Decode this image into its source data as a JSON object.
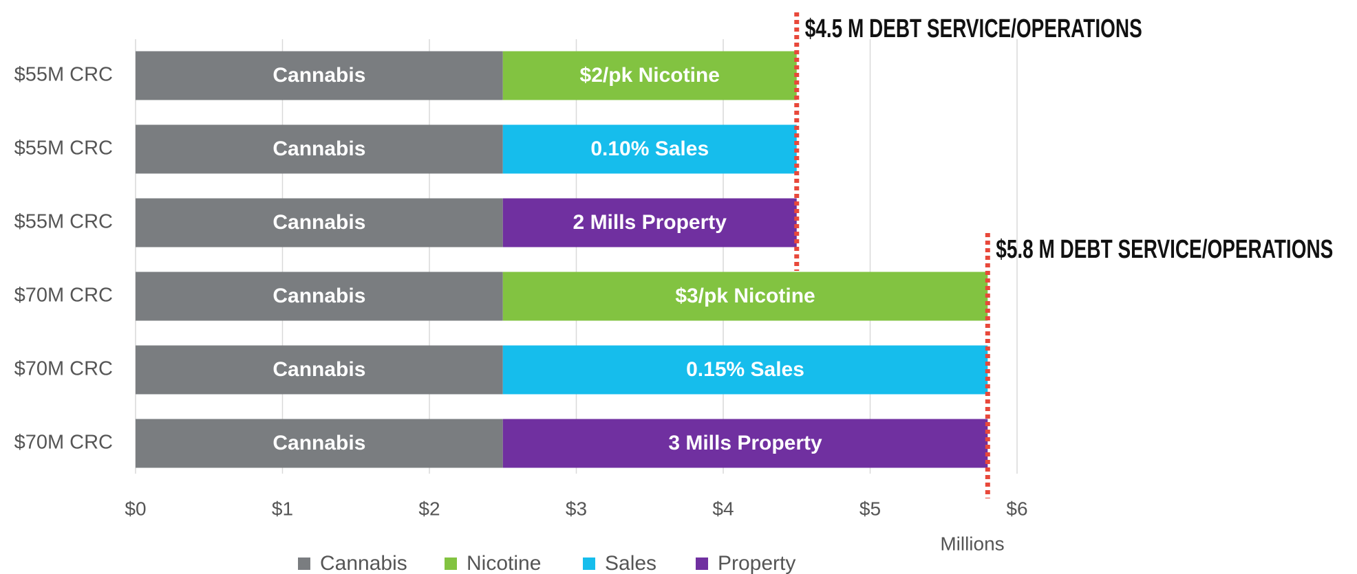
{
  "chart_data": {
    "type": "stacked-bar-horizontal",
    "categories": [
      "$55M CRC",
      "$55M CRC",
      "$55M CRC",
      "$70M CRC",
      "$70M CRC",
      "$70M CRC"
    ],
    "series": [
      {
        "name": "Cannabis",
        "color": "#7a7d80",
        "values": [
          2.5,
          2.5,
          2.5,
          2.5,
          2.5,
          2.5
        ],
        "labels": [
          "Cannabis",
          "Cannabis",
          "Cannabis",
          "Cannabis",
          "Cannabis",
          "Cannabis"
        ]
      },
      {
        "name": "Nicotine",
        "color": "#82c341",
        "values": [
          2,
          null,
          null,
          3.3,
          null,
          null
        ],
        "labels": [
          "$2/pk Nicotine",
          null,
          null,
          "$3/pk Nicotine",
          null,
          null
        ]
      },
      {
        "name": "Sales",
        "color": "#16bdec",
        "values": [
          null,
          2,
          null,
          null,
          3.3,
          null
        ],
        "labels": [
          null,
          "0.10% Sales",
          null,
          null,
          "0.15% Sales",
          null
        ]
      },
      {
        "name": "Property",
        "color": "#7030a0",
        "values": [
          null,
          null,
          2,
          null,
          null,
          3.3
        ],
        "labels": [
          null,
          null,
          "2 Mills Property",
          null,
          null,
          "3 Mills Property"
        ]
      }
    ],
    "xlim": [
      0,
      6
    ],
    "xticks": [
      {
        "value": 0,
        "label": "$0"
      },
      {
        "value": 1,
        "label": "$1"
      },
      {
        "value": 2,
        "label": "$2"
      },
      {
        "value": 3,
        "label": "$3"
      },
      {
        "value": 4,
        "label": "$4"
      },
      {
        "value": 5,
        "label": "$5"
      },
      {
        "value": 6,
        "label": "$6"
      }
    ],
    "x_axis_label": "Millions",
    "grid": true,
    "annotations": [
      {
        "value": 4.5,
        "label": "$4.5 M DEBT SERVICE/OPERATIONS",
        "color": "#e8483a"
      },
      {
        "value": 5.8,
        "label": "$5.8 M DEBT SERVICE/OPERATIONS",
        "color": "#e8483a"
      }
    ],
    "legend": "bottom"
  }
}
